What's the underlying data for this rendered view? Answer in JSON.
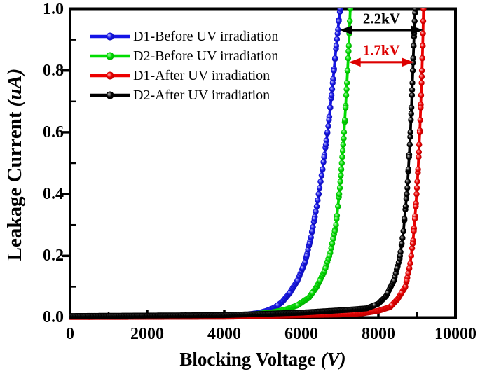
{
  "chart_data": {
    "type": "line",
    "title": "",
    "xlabel": {
      "text": "Blocking Voltage",
      "unit": "(V)"
    },
    "ylabel": {
      "text": "Leakage Current",
      "unit": "(uA)"
    },
    "xlim": [
      0,
      10000
    ],
    "ylim": [
      0,
      1.0
    ],
    "xticks": [
      0,
      2000,
      4000,
      6000,
      8000,
      10000
    ],
    "xtick_labels": [
      "0",
      "2000",
      "4000",
      "6000",
      "8000",
      "10000"
    ],
    "yticks": [
      0.0,
      0.2,
      0.4,
      0.6,
      0.8,
      1.0
    ],
    "ytick_labels": [
      "0.0",
      "0.2",
      "0.4",
      "0.6",
      "0.8",
      "1.0"
    ],
    "grid": false,
    "legend_position": "top-left",
    "axis_color": "#000000",
    "series": [
      {
        "name": "D1-Before UV irradiation",
        "color": "#1414e6",
        "points": [
          [
            0,
            0.004
          ],
          [
            2000,
            0.004
          ],
          [
            3500,
            0.005
          ],
          [
            4200,
            0.007
          ],
          [
            4600,
            0.01
          ],
          [
            4900,
            0.015
          ],
          [
            5100,
            0.022
          ],
          [
            5300,
            0.032
          ],
          [
            5500,
            0.05
          ],
          [
            5700,
            0.08
          ],
          [
            5900,
            0.12
          ],
          [
            6100,
            0.18
          ],
          [
            6250,
            0.26
          ],
          [
            6400,
            0.36
          ],
          [
            6550,
            0.48
          ],
          [
            6700,
            0.62
          ],
          [
            6800,
            0.74
          ],
          [
            6900,
            0.87
          ],
          [
            6980,
            0.97
          ],
          [
            7010,
            1.0
          ]
        ]
      },
      {
        "name": "D2-Before UV irradiation",
        "color": "#00dc00",
        "points": [
          [
            0,
            0.003
          ],
          [
            3000,
            0.004
          ],
          [
            4000,
            0.006
          ],
          [
            4700,
            0.01
          ],
          [
            5200,
            0.016
          ],
          [
            5600,
            0.026
          ],
          [
            5900,
            0.04
          ],
          [
            6200,
            0.065
          ],
          [
            6400,
            0.1
          ],
          [
            6600,
            0.15
          ],
          [
            6750,
            0.21
          ],
          [
            6900,
            0.3
          ],
          [
            7000,
            0.42
          ],
          [
            7100,
            0.58
          ],
          [
            7180,
            0.75
          ],
          [
            7240,
            0.9
          ],
          [
            7270,
            1.0
          ]
        ]
      },
      {
        "name": "D1-After UV irradiation",
        "color": "#ec0000",
        "points": [
          [
            0,
            0.002
          ],
          [
            4000,
            0.003
          ],
          [
            5000,
            0.005
          ],
          [
            6000,
            0.008
          ],
          [
            7000,
            0.01
          ],
          [
            7600,
            0.014
          ],
          [
            8000,
            0.022
          ],
          [
            8300,
            0.034
          ],
          [
            8500,
            0.06
          ],
          [
            8700,
            0.1
          ],
          [
            8820,
            0.17
          ],
          [
            8900,
            0.25
          ],
          [
            8970,
            0.36
          ],
          [
            9030,
            0.48
          ],
          [
            9080,
            0.62
          ],
          [
            9120,
            0.76
          ],
          [
            9150,
            0.88
          ],
          [
            9170,
            1.0
          ]
        ]
      },
      {
        "name": "D2-After UV irradiation",
        "color": "#000000",
        "points": [
          [
            0,
            0.005
          ],
          [
            4000,
            0.008
          ],
          [
            5000,
            0.012
          ],
          [
            6000,
            0.016
          ],
          [
            6800,
            0.022
          ],
          [
            7300,
            0.026
          ],
          [
            7700,
            0.03
          ],
          [
            8000,
            0.045
          ],
          [
            8200,
            0.07
          ],
          [
            8400,
            0.12
          ],
          [
            8550,
            0.19
          ],
          [
            8650,
            0.28
          ],
          [
            8750,
            0.42
          ],
          [
            8820,
            0.57
          ],
          [
            8870,
            0.72
          ],
          [
            8910,
            0.86
          ],
          [
            8940,
            0.96
          ],
          [
            8955,
            1.0
          ]
        ]
      }
    ],
    "annotations": [
      {
        "text": "2.2kV",
        "color": "#000000",
        "v_from": 7000,
        "v_to": 9160,
        "i": 0.931,
        "label_i": 0.968
      },
      {
        "text": "1.7kV",
        "color": "#dd0000",
        "v_from": 7230,
        "v_to": 8920,
        "i": 0.827,
        "label_i": 0.864
      }
    ]
  }
}
